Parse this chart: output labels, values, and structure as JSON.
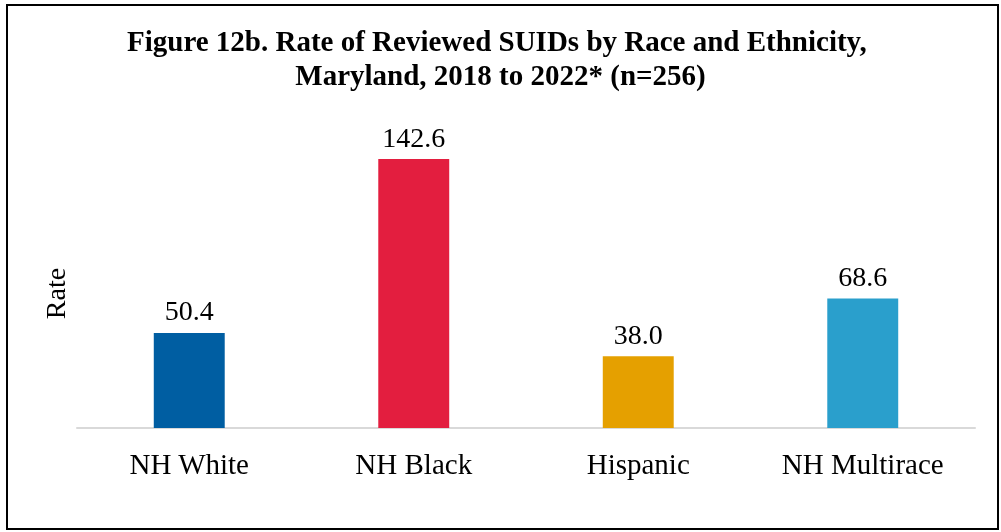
{
  "chart_data": {
    "type": "bar",
    "title": "Figure 12b. Rate of Reviewed SUIDs by Race and Ethnicity, Maryland, 2018 to 2022* (n=256)",
    "ylabel": "Rate",
    "categories": [
      "NH White",
      "NH Black",
      "Hispanic",
      "NH Multirace"
    ],
    "values": [
      50.4,
      142.6,
      38.0,
      68.6
    ],
    "colors": [
      "#005ea2",
      "#e31e3f",
      "#e5a000",
      "#2a9fcc"
    ],
    "value_labels": [
      "50.4",
      "142.6",
      "38.0",
      "68.6"
    ],
    "tick_labels": "x",
    "grid": false
  }
}
